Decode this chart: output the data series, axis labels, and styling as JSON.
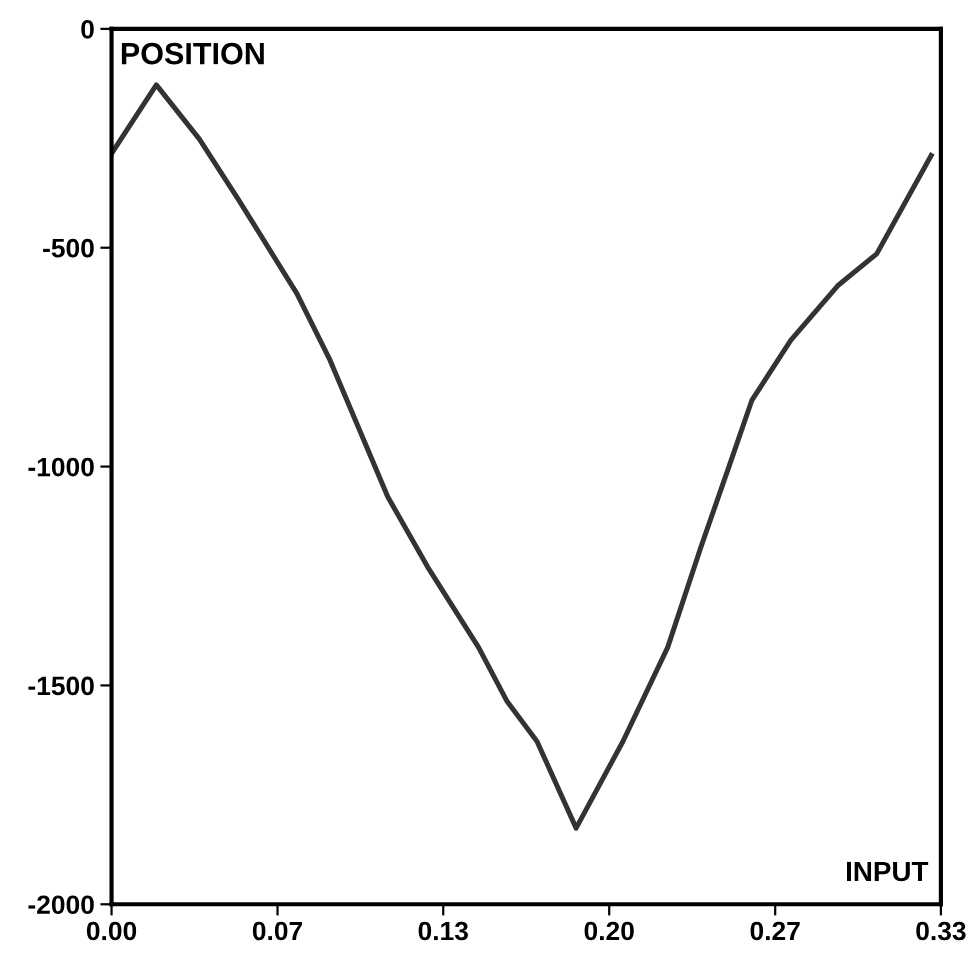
{
  "chart_data": {
    "type": "line",
    "xlabel": "INPUT",
    "ylabel": "POSITION",
    "x": [
      0,
      0.018,
      0.0353,
      0.051,
      0.0745,
      0.0878,
      0.111,
      0.127,
      0.1475,
      0.159,
      0.171,
      0.1867,
      0.2055,
      0.2235,
      0.2369,
      0.249,
      0.2573,
      0.273,
      0.2918,
      0.3075,
      0.3294
    ],
    "series": [
      {
        "color": "#333333",
        "values": [
          -285,
          -128,
          -252,
          -390,
          -605,
          -757,
          -1069,
          -1229,
          -1413,
          -1537,
          -1628,
          -1826,
          -1628,
          -1413,
          -1183,
          -986,
          -849,
          -711,
          -587,
          -514,
          -289
        ]
      }
    ],
    "xlim": [
      0,
      0.3333
    ],
    "ylim": [
      -2000,
      0
    ],
    "xticks": [
      {
        "value": 0,
        "label": "0.00"
      },
      {
        "value": 0.0667,
        "label": "0.07"
      },
      {
        "value": 0.1333,
        "label": "0.13"
      },
      {
        "value": 0.2,
        "label": "0.20"
      },
      {
        "value": 0.2667,
        "label": "0.27"
      },
      {
        "value": 0.3333,
        "label": "0.33"
      }
    ],
    "yticks": [
      0,
      -500,
      -1000,
      -1500,
      -2000
    ],
    "grid": false,
    "legend": false,
    "marker": "none",
    "line_style": "solid"
  }
}
